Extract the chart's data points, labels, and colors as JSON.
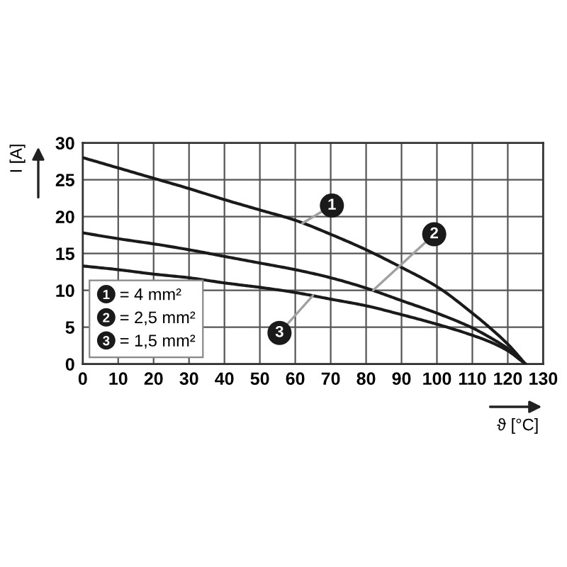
{
  "chart_data": {
    "type": "line",
    "xlabel": "ϑ [°C]",
    "ylabel": "I [A]",
    "x": [
      0,
      10,
      20,
      30,
      40,
      50,
      60,
      70,
      80,
      90,
      100,
      110,
      115,
      120,
      125
    ],
    "series": [
      {
        "name": "= 4 mm²",
        "color": "#1a1a1a",
        "values": [
          28,
          26.6,
          25.2,
          23.8,
          22.3,
          20.9,
          19.5,
          17.6,
          15.5,
          13.1,
          10.5,
          6.9,
          4.9,
          2.7,
          0
        ]
      },
      {
        "name": "= 2,5 mm²",
        "color": "#1a1a1a",
        "values": [
          17.8,
          17.0,
          16.3,
          15.5,
          14.6,
          13.7,
          12.8,
          11.7,
          10.3,
          8.6,
          6.9,
          4.9,
          3.6,
          2.1,
          0
        ]
      },
      {
        "name": "= 1,5 mm²",
        "color": "#1a1a1a",
        "values": [
          13.3,
          12.8,
          12.2,
          11.7,
          11.0,
          10.4,
          9.7,
          8.8,
          7.9,
          6.7,
          5.4,
          3.9,
          3.0,
          1.8,
          0
        ]
      }
    ],
    "xlim": [
      0,
      130
    ],
    "ylim": [
      0,
      30
    ],
    "xticks": [
      0,
      10,
      20,
      30,
      40,
      50,
      60,
      70,
      80,
      90,
      100,
      110,
      120,
      130
    ],
    "yticks": [
      0,
      5,
      10,
      15,
      20,
      25,
      30
    ],
    "grid": true,
    "legend": "bottom left",
    "marker": "none",
    "line_style": "solid",
    "annotations": [
      {
        "text": "1",
        "x": 62,
        "y": 19.1
      },
      {
        "text": "2",
        "x": 82,
        "y": 10.0
      },
      {
        "text": "3",
        "x": 65,
        "y": 9.3
      }
    ]
  }
}
